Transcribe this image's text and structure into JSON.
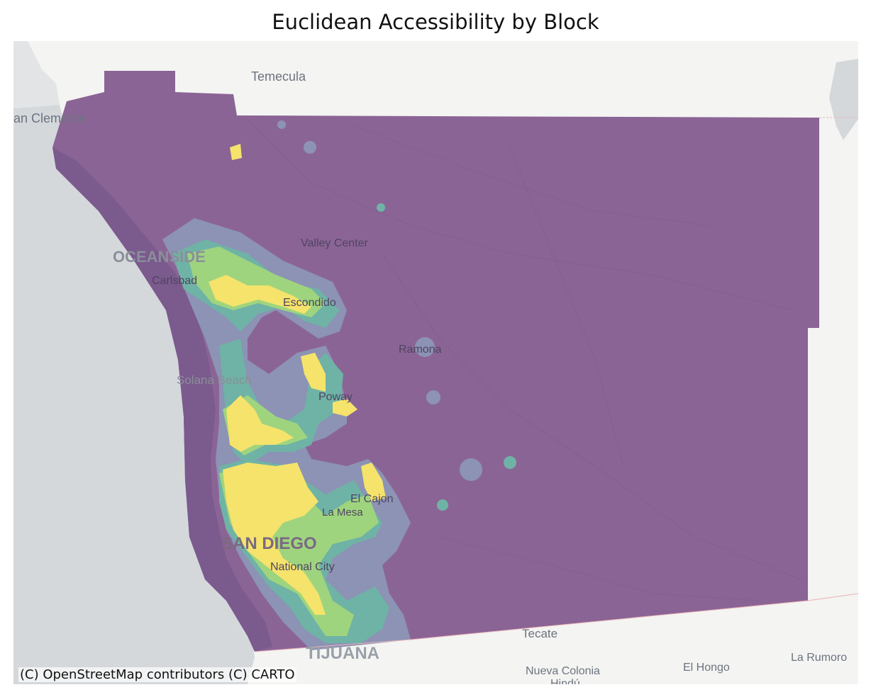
{
  "title": "Euclidean Accessibility by Block",
  "attribution": "(C) OpenStreetMap contributors (C) CARTO",
  "basemap_labels": {
    "temecula": "Temecula",
    "san_clemente": "an Clemente",
    "oceanside": "OCEANSIDE",
    "carlsbad": "Carlsbad",
    "valley_center": "Valley Center",
    "escondido": "Escondido",
    "ramona": "Ramona",
    "solana_beach": "Solana Beach",
    "poway": "Poway",
    "el_cajon": "El Cajon",
    "la_mesa": "La Mesa",
    "san_diego": "SAN DIEGO",
    "national_city": "National City",
    "tecate": "Tecate",
    "tijuana": "TIJUANA",
    "nueva_colonia": "Nueva Colonia",
    "hindu": "Hindú",
    "el_hongo": "El Hongo",
    "la_rumorosa": "La Rumoro"
  },
  "colors": {
    "ocean": "#d4d8db",
    "land": "#f4f4f2",
    "low": "#8b6496",
    "coast_dark": "#7b5a8e",
    "mid_low": "#8c93b4",
    "mid": "#6fb3a6",
    "mid_high": "#9fd47f",
    "high": "#f5e36b"
  },
  "colormap": "viridis"
}
